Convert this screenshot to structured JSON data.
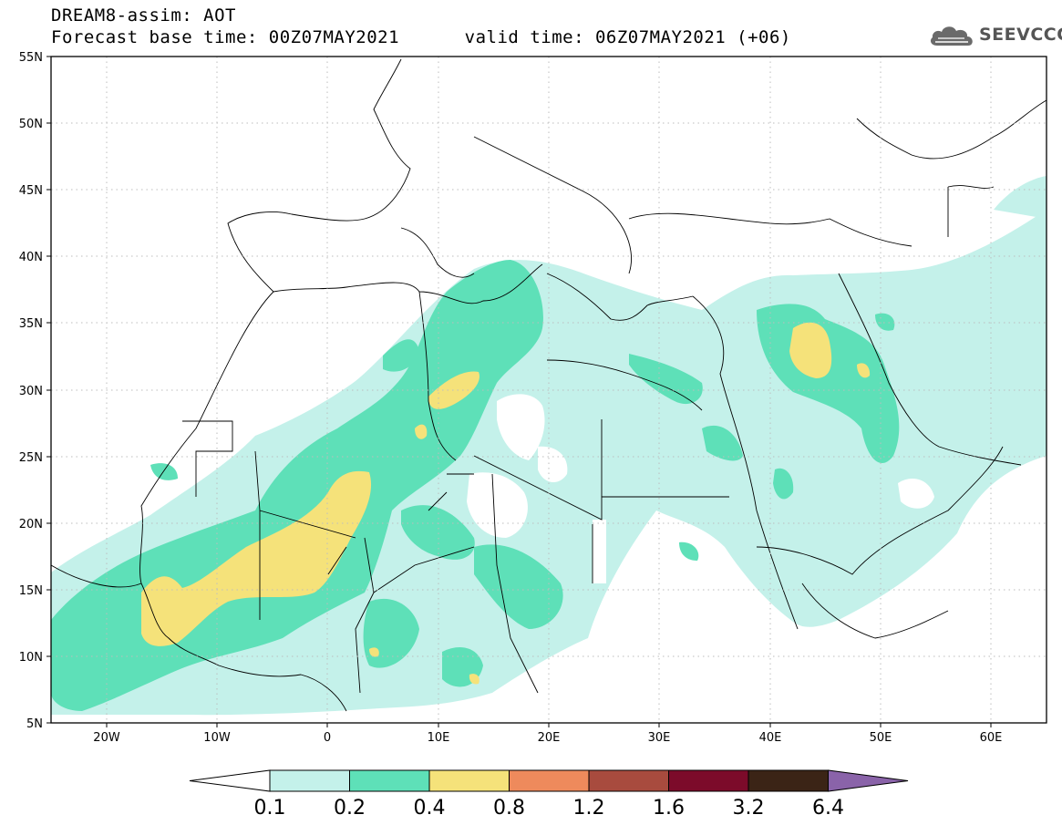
{
  "header": {
    "title_line1": "DREAM8-assim: AOT",
    "title_line2": "Forecast base time: 00Z07MAY2021      valid time: 06Z07MAY2021 (+06)"
  },
  "logo": {
    "text": "SEEVCCC",
    "icon": "cloud-icon"
  },
  "map": {
    "lat_labels": [
      "55N",
      "50N",
      "45N",
      "40N",
      "35N",
      "30N",
      "25N",
      "20N",
      "15N",
      "10N",
      "5N"
    ],
    "lon_labels": [
      "20W",
      "10W",
      "0",
      "10E",
      "20E",
      "30E",
      "40E",
      "50E",
      "60E"
    ],
    "extent": {
      "lon": [
        -25,
        65
      ],
      "lat": [
        5,
        55
      ]
    },
    "gridlines": "dotted"
  },
  "colorbar": {
    "levels": [
      "0.1",
      "0.2",
      "0.4",
      "0.8",
      "1.2",
      "1.6",
      "3.2",
      "6.4"
    ],
    "colors": {
      "below": "#ffffff",
      "bins": [
        "#c4f1ea",
        "#5ee0b8",
        "#f5e27a",
        "#ee8a5c",
        "#a84b3e",
        "#7c0b2a",
        "#3b2416"
      ],
      "above": "#8a63a9"
    }
  }
}
